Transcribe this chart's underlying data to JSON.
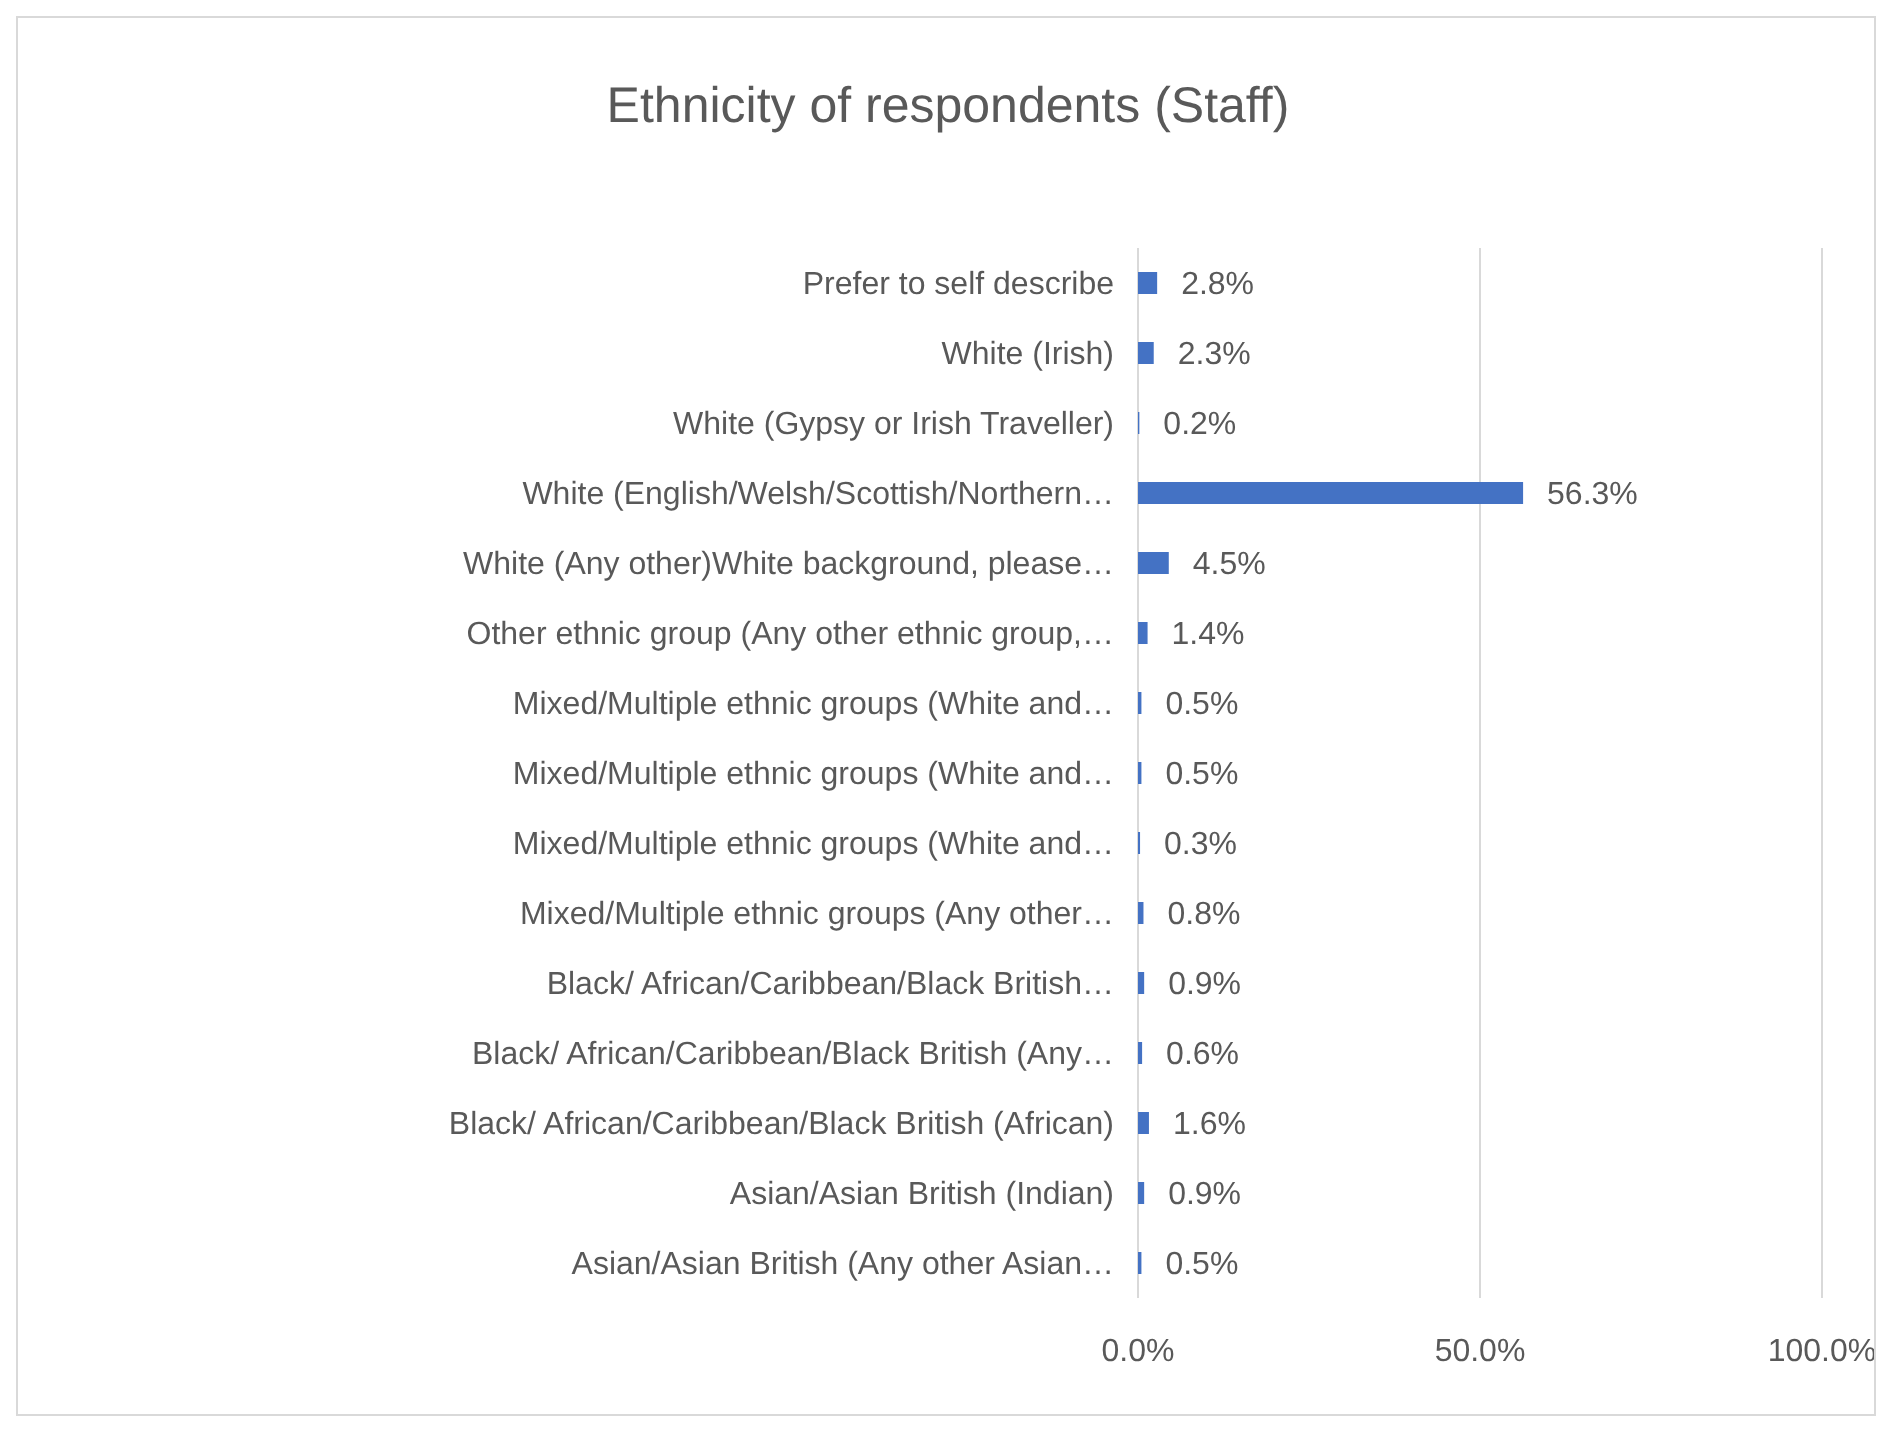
{
  "chart_data": {
    "type": "bar",
    "orientation": "horizontal",
    "title": "Ethnicity of respondents (Staff)",
    "categories": [
      "Prefer to self describe",
      "White (Irish)",
      "White (Gypsy or Irish Traveller)",
      "White (English/Welsh/Scottish/Northern…",
      "White (Any other)White background, please…",
      "Other ethnic group (Any other ethnic group,…",
      "Mixed/Multiple ethnic groups (White and…",
      "Mixed/Multiple ethnic groups (White and…",
      "Mixed/Multiple ethnic groups (White and…",
      "Mixed/Multiple ethnic groups (Any other…",
      "Black/ African/Caribbean/Black British…",
      "Black/ African/Caribbean/Black British (Any…",
      "Black/ African/Caribbean/Black British (African)",
      "Asian/Asian British (Indian)",
      "Asian/Asian British (Any other Asian…"
    ],
    "values": [
      2.8,
      2.3,
      0.2,
      56.3,
      4.5,
      1.4,
      0.5,
      0.5,
      0.3,
      0.8,
      0.9,
      0.6,
      1.6,
      0.9,
      0.5
    ],
    "value_labels": [
      "2.8%",
      "2.3%",
      "0.2%",
      "56.3%",
      "4.5%",
      "1.4%",
      "0.5%",
      "0.5%",
      "0.3%",
      "0.8%",
      "0.9%",
      "0.6%",
      "1.6%",
      "0.9%",
      "0.5%"
    ],
    "color": "#4472c4",
    "xlim": [
      0,
      100
    ],
    "xticks": [
      {
        "value": 0,
        "label": "0.0%"
      },
      {
        "value": 50,
        "label": "50.0%"
      },
      {
        "value": 100,
        "label": "100.0%"
      }
    ],
    "grid": "x"
  }
}
